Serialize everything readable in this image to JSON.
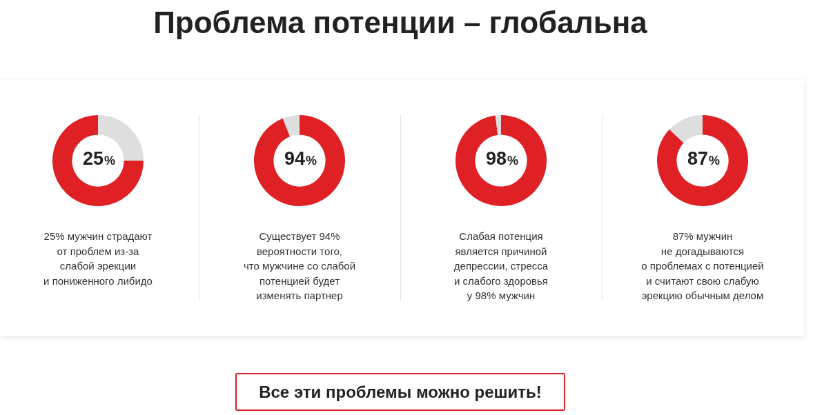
{
  "chart_data": [
    {
      "type": "donut",
      "title": "Проблема потенции – глобальна",
      "categories": [
        null,
        null
      ],
      "values": [
        25,
        75
      ],
      "colors": [
        "#dedede",
        "#df2126"
      ],
      "value_labels": [
        "25%",
        null
      ],
      "annotations": [
        "25% мужчин страдают\nот проблем из-за\nслабой эрекции\nи пониженного либидо"
      ]
    },
    {
      "type": "donut",
      "categories": [
        null,
        null
      ],
      "values": [
        94,
        6
      ],
      "colors": [
        "#df2126",
        "#dedede"
      ],
      "value_labels": [
        "94%",
        null
      ],
      "annotations": [
        "Существует 94%\nвероятности того,\nчто мужчине со слабой\nпотенцией будет\nизменять партнер"
      ]
    },
    {
      "type": "donut",
      "categories": [
        null,
        null
      ],
      "values": [
        98,
        2
      ],
      "colors": [
        "#df2126",
        "#dedede"
      ],
      "value_labels": [
        "98%",
        null
      ],
      "annotations": [
        "Слабая потенция\nявляется причиной\nдепрессии, стресса\nи слабого здоровья\nу 98% мужчин"
      ]
    },
    {
      "type": "donut",
      "categories": [
        null,
        null
      ],
      "values": [
        87,
        13
      ],
      "colors": [
        "#df2126",
        "#dedede"
      ],
      "value_labels": [
        "87%",
        null
      ],
      "annotations": [
        "87% мужчин\nне догадываются\nо проблемах с потенцией\nи считают свою слабую\nэрекцию обычным делом"
      ]
    },
    {
      "type": "other",
      "annotations": [
        "Все эти проблемы можно решить!"
      ]
    }
  ]
}
